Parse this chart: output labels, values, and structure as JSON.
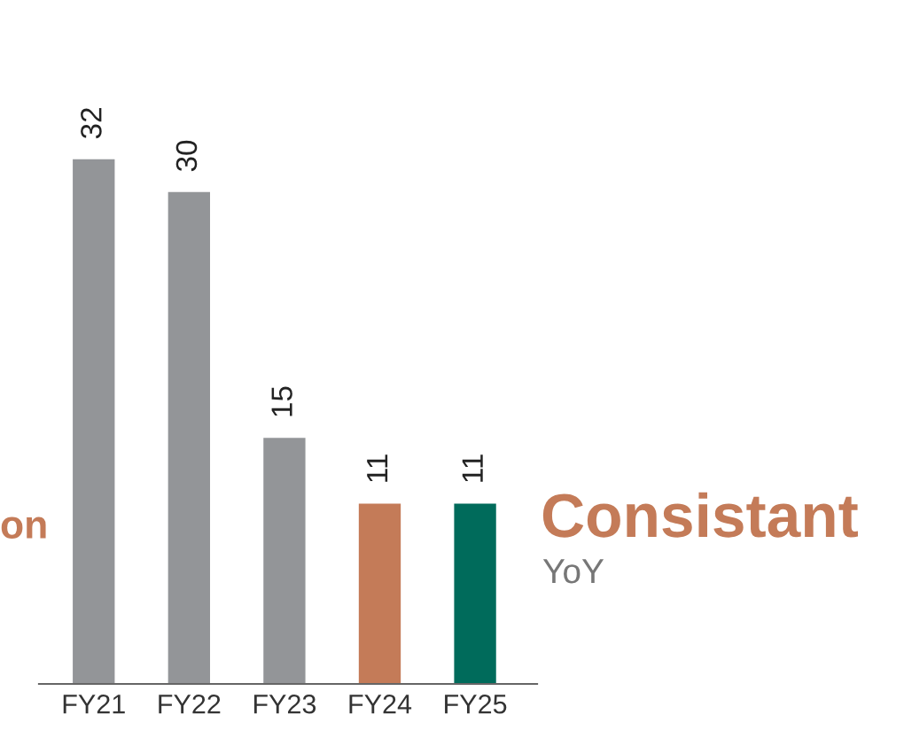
{
  "chart_data": {
    "type": "bar",
    "categories": [
      "FY21",
      "FY22",
      "FY23",
      "FY24",
      "FY25"
    ],
    "values": [
      32,
      30,
      15,
      11,
      11
    ],
    "colors": [
      "#939598",
      "#939598",
      "#939598",
      "#c47b58",
      "#006b5b"
    ],
    "data_labels": true,
    "grid": false,
    "legend": false,
    "annotations": [
      "on",
      "Consistant",
      "YoY"
    ]
  }
}
